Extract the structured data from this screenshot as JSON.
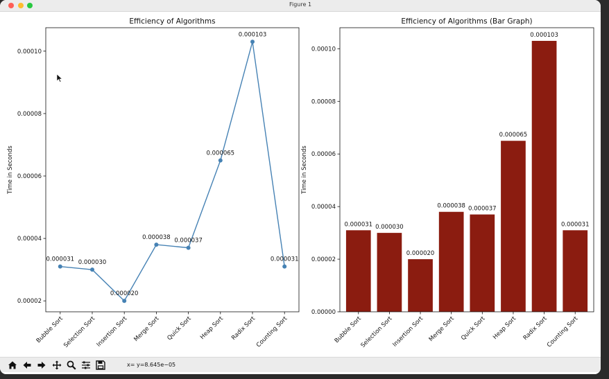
{
  "window": {
    "title": "Figure 1"
  },
  "toolbar": {
    "icons": [
      "home-icon",
      "back-arrow-icon",
      "forward-arrow-icon",
      "pan-icon",
      "zoom-icon",
      "configure-subplots-icon",
      "save-icon"
    ],
    "coordinate_readout": "x= y=8.645e−05"
  },
  "chart_data": [
    {
      "type": "line",
      "title": "Efficiency of Algorithms",
      "xlabel": "",
      "ylabel": "Time in Seconds",
      "categories": [
        "Bubble Sort",
        "Selection Sort",
        "Insertion Sort",
        "Merge Sort",
        "Quick Sort",
        "Heap Sort",
        "Radix Sort",
        "Counting Sort"
      ],
      "values": [
        3.1e-05,
        3e-05,
        2e-05,
        3.8e-05,
        3.7e-05,
        6.5e-05,
        0.000103,
        3.1e-05
      ],
      "data_labels": [
        "0.000031",
        "0.000030",
        "0.000020",
        "0.000038",
        "0.000037",
        "0.000065",
        "0.000103",
        "0.000031"
      ],
      "yticks": [
        2e-05,
        4e-05,
        6e-05,
        8e-05,
        0.0001
      ],
      "ytick_labels": [
        "0.00002",
        "0.00004",
        "0.00006",
        "0.00008",
        "0.00010"
      ],
      "ylim": [
        1.65e-05,
        0.0001075
      ],
      "color": "#4682b4",
      "grid": false
    },
    {
      "type": "bar",
      "title": "Efficiency of Algorithms (Bar Graph)",
      "xlabel": "",
      "ylabel": "Time in Seconds",
      "categories": [
        "Bubble Sort",
        "Selection Sort",
        "Insertion Sort",
        "Merge Sort",
        "Quick Sort",
        "Heap Sort",
        "Radix Sort",
        "Counting Sort"
      ],
      "values": [
        3.1e-05,
        3e-05,
        2e-05,
        3.8e-05,
        3.7e-05,
        6.5e-05,
        0.000103,
        3.1e-05
      ],
      "data_labels": [
        "0.000031",
        "0.000030",
        "0.000020",
        "0.000038",
        "0.000037",
        "0.000065",
        "0.000103",
        "0.000031"
      ],
      "yticks": [
        0,
        2e-05,
        4e-05,
        6e-05,
        8e-05,
        0.0001
      ],
      "ytick_labels": [
        "0.00000",
        "0.00002",
        "0.00004",
        "0.00006",
        "0.00008",
        "0.00010"
      ],
      "ylim": [
        0,
        0.000108
      ],
      "color": "#8b1c10",
      "grid": false
    }
  ]
}
